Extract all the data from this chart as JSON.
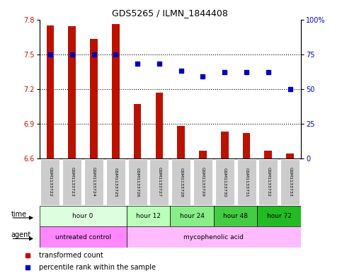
{
  "title": "GDS5265 / ILMN_1844408",
  "samples": [
    "GSM1133722",
    "GSM1133723",
    "GSM1133724",
    "GSM1133725",
    "GSM1133726",
    "GSM1133727",
    "GSM1133728",
    "GSM1133729",
    "GSM1133730",
    "GSM1133731",
    "GSM1133732",
    "GSM1133733"
  ],
  "transformed_count": [
    7.75,
    7.74,
    7.63,
    7.76,
    7.07,
    7.17,
    6.88,
    6.67,
    6.83,
    6.82,
    6.67,
    6.64
  ],
  "percentile_rank": [
    75,
    75,
    75,
    75,
    68,
    68,
    63,
    59,
    62,
    62,
    62,
    50
  ],
  "bar_bottom": 6.6,
  "ylim_left": [
    6.6,
    7.8
  ],
  "ylim_right": [
    0,
    100
  ],
  "yticks_left": [
    6.6,
    6.9,
    7.2,
    7.5,
    7.8
  ],
  "yticks_right": [
    0,
    25,
    50,
    75,
    100
  ],
  "bar_color": "#bb1100",
  "dot_color": "#0000bb",
  "dotted_line_values": [
    6.9,
    7.2,
    7.5
  ],
  "time_groups": [
    {
      "label": "hour 0",
      "start": 0,
      "end": 4,
      "color": "#ddffdd"
    },
    {
      "label": "hour 12",
      "start": 4,
      "end": 6,
      "color": "#bbffbb"
    },
    {
      "label": "hour 24",
      "start": 6,
      "end": 8,
      "color": "#88ee88"
    },
    {
      "label": "hour 48",
      "start": 8,
      "end": 10,
      "color": "#44cc44"
    },
    {
      "label": "hour 72",
      "start": 10,
      "end": 12,
      "color": "#22bb22"
    }
  ],
  "agent_groups": [
    {
      "label": "untreated control",
      "start": 0,
      "end": 4,
      "color": "#ff88ff"
    },
    {
      "label": "mycophenolic acid",
      "start": 4,
      "end": 12,
      "color": "#ffbbff"
    }
  ],
  "legend_items": [
    {
      "label": "transformed count",
      "color": "#bb1100",
      "marker": "s"
    },
    {
      "label": "percentile rank within the sample",
      "color": "#0000bb",
      "marker": "s"
    }
  ],
  "bg_color": "#ffffff",
  "sample_bg_color": "#cccccc",
  "border_color": "#000000"
}
